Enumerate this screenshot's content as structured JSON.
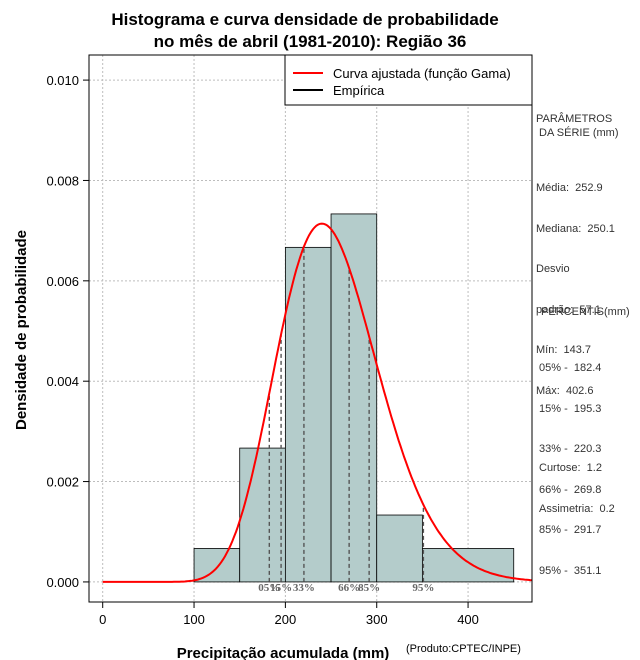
{
  "chart_data": {
    "type": "histogram",
    "title": [
      "Histograma e curva densidade de probabilidade",
      "no mês de abril (1981-2010): Região 36"
    ],
    "xlabel": "Precipitação acumulada (mm)",
    "ylabel": "Densidade de probabilidade",
    "credit": "(Produto:CPTEC/INPE)",
    "xlim": [
      -15,
      470
    ],
    "ylim": [
      -0.0004,
      0.0105
    ],
    "xticks": [
      0,
      100,
      200,
      300,
      400
    ],
    "yticks": [
      0.0,
      0.002,
      0.004,
      0.006,
      0.008,
      0.01
    ],
    "xtick_labels": [
      "0",
      "100",
      "200",
      "300",
      "400"
    ],
    "ytick_labels": [
      "0.000",
      "0.002",
      "0.004",
      "0.006",
      "0.008",
      "0.010"
    ],
    "grid": true,
    "bins": [
      {
        "x0": 100,
        "x1": 150,
        "density": 0.000667
      },
      {
        "x0": 150,
        "x1": 200,
        "density": 0.002667
      },
      {
        "x0": 200,
        "x1": 250,
        "density": 0.006667
      },
      {
        "x0": 250,
        "x1": 300,
        "density": 0.007333
      },
      {
        "x0": 300,
        "x1": 350,
        "density": 0.001333
      },
      {
        "x0": 350,
        "x1": 450,
        "density": 0.000667
      }
    ],
    "gamma_fit": {
      "shape": 19.62,
      "scale": 12.89
    },
    "percentile_lines": [
      {
        "label": "05%",
        "x": 182.4
      },
      {
        "label": "15%",
        "x": 195.3
      },
      {
        "label": "33%",
        "x": 220.3
      },
      {
        "label": "66%",
        "x": 269.8
      },
      {
        "label": "85%",
        "x": 291.7
      },
      {
        "label": "95%",
        "x": 351.1
      }
    ],
    "legend": {
      "position": "top-right",
      "entries": [
        {
          "label": "Curva ajustada (função Gama)",
          "color": "#ff0000"
        },
        {
          "label": "Empírica",
          "color": "#000000"
        }
      ]
    },
    "colors": {
      "bar": "#b4cccb",
      "curve": "#ff0000",
      "grid": "#bdbdbd",
      "pct_text": "#666666"
    }
  },
  "side_panel": {
    "params_title": [
      "PARÂMETROS",
      " DA SÉRIE (mm)"
    ],
    "params": [
      "Média:  252.9",
      "Mediana:  250.1",
      "Desvio",
      "padrão:  57.1",
      "Mín:  143.7",
      "Máx:  402.6"
    ],
    "pct_title": " PERCENTIS(mm)",
    "pcts": [
      "05% -  182.4",
      "15% -  195.3",
      "33% -  220.3",
      "66% -  269.8",
      "85% -  291.7",
      "95% -  351.1"
    ],
    "stats": [
      "Curtose:  1.2",
      "Assimetria:  0.2"
    ]
  }
}
